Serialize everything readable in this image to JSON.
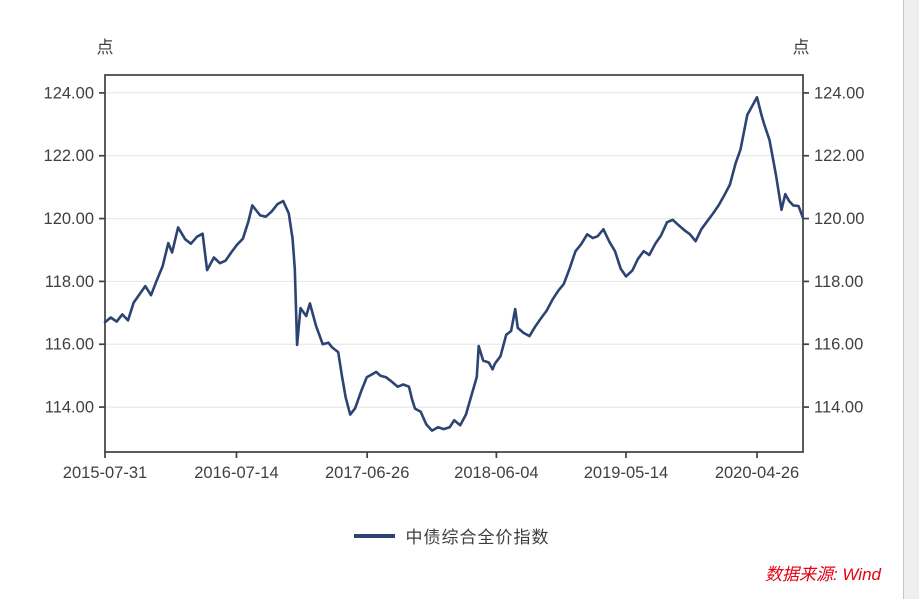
{
  "page": {
    "background": "#ffffff"
  },
  "source_note": {
    "text": "数据来源: Wind",
    "color": "#e60012"
  },
  "chart_data": {
    "type": "line",
    "title": "",
    "unit_label_left": "点",
    "unit_label_right": "点",
    "ylabel": "点",
    "grid": "horizontal",
    "legend_position": "bottom-center",
    "axis_color": "#404040",
    "grid_color": "#e4e4e4",
    "label_color": "#404040",
    "y_ticks": [
      114,
      116,
      118,
      120,
      122,
      124
    ],
    "ylim": [
      112.57,
      124.57
    ],
    "x_range": [
      "2015-07-31",
      "2020-08-26"
    ],
    "x_tick_labels": [
      "2015-07-31",
      "2016-07-14",
      "2017-06-26",
      "2018-06-04",
      "2019-05-14",
      "2020-04-26"
    ],
    "legend": [
      {
        "name": "中债综合全价指数",
        "color": "#2d4373"
      }
    ],
    "series": [
      {
        "name": "中债综合全价指数",
        "color": "#2d4373",
        "points": [
          [
            "2015-07-31",
            116.7
          ],
          [
            "2015-08-15",
            116.85
          ],
          [
            "2015-08-31",
            116.72
          ],
          [
            "2015-09-15",
            116.95
          ],
          [
            "2015-09-30",
            116.76
          ],
          [
            "2015-10-15",
            117.32
          ],
          [
            "2015-10-31",
            117.6
          ],
          [
            "2015-11-15",
            117.85
          ],
          [
            "2015-11-30",
            117.56
          ],
          [
            "2015-12-15",
            118.02
          ],
          [
            "2015-12-31",
            118.48
          ],
          [
            "2016-01-15",
            119.22
          ],
          [
            "2016-01-25",
            118.92
          ],
          [
            "2016-02-10",
            119.72
          ],
          [
            "2016-02-29",
            119.34
          ],
          [
            "2016-03-15",
            119.2
          ],
          [
            "2016-03-31",
            119.42
          ],
          [
            "2016-04-15",
            119.52
          ],
          [
            "2016-04-27",
            118.36
          ],
          [
            "2016-05-15",
            118.76
          ],
          [
            "2016-05-31",
            118.58
          ],
          [
            "2016-06-15",
            118.66
          ],
          [
            "2016-06-30",
            118.92
          ],
          [
            "2016-07-15",
            119.16
          ],
          [
            "2016-07-31",
            119.36
          ],
          [
            "2016-08-15",
            119.92
          ],
          [
            "2016-08-25",
            120.42
          ],
          [
            "2016-09-15",
            120.1
          ],
          [
            "2016-09-30",
            120.06
          ],
          [
            "2016-10-15",
            120.22
          ],
          [
            "2016-10-31",
            120.46
          ],
          [
            "2016-11-15",
            120.56
          ],
          [
            "2016-11-30",
            120.16
          ],
          [
            "2016-12-10",
            119.35
          ],
          [
            "2016-12-16",
            118.4
          ],
          [
            "2016-12-22",
            115.98
          ],
          [
            "2016-12-31",
            117.15
          ],
          [
            "2017-01-15",
            116.9
          ],
          [
            "2017-01-25",
            117.3
          ],
          [
            "2017-02-10",
            116.6
          ],
          [
            "2017-02-28",
            116.0
          ],
          [
            "2017-03-15",
            116.05
          ],
          [
            "2017-03-25",
            115.9
          ],
          [
            "2017-04-10",
            115.75
          ],
          [
            "2017-04-20",
            115.0
          ],
          [
            "2017-04-30",
            114.3
          ],
          [
            "2017-05-12",
            113.76
          ],
          [
            "2017-05-25",
            113.96
          ],
          [
            "2017-06-10",
            114.5
          ],
          [
            "2017-06-25",
            114.95
          ],
          [
            "2017-07-10",
            115.05
          ],
          [
            "2017-07-20",
            115.12
          ],
          [
            "2017-07-31",
            115.0
          ],
          [
            "2017-08-15",
            114.95
          ],
          [
            "2017-08-31",
            114.8
          ],
          [
            "2017-09-15",
            114.65
          ],
          [
            "2017-09-30",
            114.72
          ],
          [
            "2017-10-15",
            114.65
          ],
          [
            "2017-10-23",
            114.25
          ],
          [
            "2017-10-31",
            113.95
          ],
          [
            "2017-11-15",
            113.85
          ],
          [
            "2017-11-30",
            113.45
          ],
          [
            "2017-12-15",
            113.25
          ],
          [
            "2017-12-31",
            113.36
          ],
          [
            "2018-01-15",
            113.3
          ],
          [
            "2018-01-31",
            113.36
          ],
          [
            "2018-02-12",
            113.58
          ],
          [
            "2018-02-28",
            113.42
          ],
          [
            "2018-03-15",
            113.76
          ],
          [
            "2018-03-31",
            114.42
          ],
          [
            "2018-04-13",
            114.96
          ],
          [
            "2018-04-18",
            115.94
          ],
          [
            "2018-04-30",
            115.48
          ],
          [
            "2018-05-15",
            115.42
          ],
          [
            "2018-05-25",
            115.2
          ],
          [
            "2018-05-31",
            115.38
          ],
          [
            "2018-06-15",
            115.62
          ],
          [
            "2018-06-30",
            116.3
          ],
          [
            "2018-07-13",
            116.42
          ],
          [
            "2018-07-24",
            117.12
          ],
          [
            "2018-07-31",
            116.52
          ],
          [
            "2018-08-15",
            116.36
          ],
          [
            "2018-08-31",
            116.26
          ],
          [
            "2018-09-15",
            116.56
          ],
          [
            "2018-09-30",
            116.82
          ],
          [
            "2018-10-15",
            117.06
          ],
          [
            "2018-10-31",
            117.42
          ],
          [
            "2018-11-15",
            117.7
          ],
          [
            "2018-11-30",
            117.92
          ],
          [
            "2018-12-15",
            118.4
          ],
          [
            "2018-12-31",
            118.96
          ],
          [
            "2019-01-15",
            119.18
          ],
          [
            "2019-01-31",
            119.5
          ],
          [
            "2019-02-15",
            119.38
          ],
          [
            "2019-02-28",
            119.44
          ],
          [
            "2019-03-15",
            119.66
          ],
          [
            "2019-03-31",
            119.26
          ],
          [
            "2019-04-15",
            118.96
          ],
          [
            "2019-04-30",
            118.4
          ],
          [
            "2019-05-14",
            118.16
          ],
          [
            "2019-05-31",
            118.35
          ],
          [
            "2019-06-15",
            118.72
          ],
          [
            "2019-06-30",
            118.96
          ],
          [
            "2019-07-15",
            118.84
          ],
          [
            "2019-07-31",
            119.2
          ],
          [
            "2019-08-15",
            119.46
          ],
          [
            "2019-08-31",
            119.88
          ],
          [
            "2019-09-15",
            119.96
          ],
          [
            "2019-09-30",
            119.8
          ],
          [
            "2019-10-15",
            119.64
          ],
          [
            "2019-10-31",
            119.5
          ],
          [
            "2019-11-15",
            119.28
          ],
          [
            "2019-11-30",
            119.66
          ],
          [
            "2019-12-15",
            119.9
          ],
          [
            "2019-12-31",
            120.16
          ],
          [
            "2020-01-15",
            120.42
          ],
          [
            "2020-01-31",
            120.76
          ],
          [
            "2020-02-14",
            121.08
          ],
          [
            "2020-02-29",
            121.76
          ],
          [
            "2020-03-13",
            122.2
          ],
          [
            "2020-03-31",
            123.3
          ],
          [
            "2020-04-15",
            123.62
          ],
          [
            "2020-04-26",
            123.86
          ],
          [
            "2020-05-08",
            123.28
          ],
          [
            "2020-05-15",
            123.0
          ],
          [
            "2020-05-29",
            122.5
          ],
          [
            "2020-06-15",
            121.4
          ],
          [
            "2020-06-30",
            120.28
          ],
          [
            "2020-07-10",
            120.78
          ],
          [
            "2020-07-20",
            120.56
          ],
          [
            "2020-07-31",
            120.42
          ],
          [
            "2020-08-14",
            120.4
          ],
          [
            "2020-08-26",
            120.02
          ]
        ]
      }
    ]
  }
}
